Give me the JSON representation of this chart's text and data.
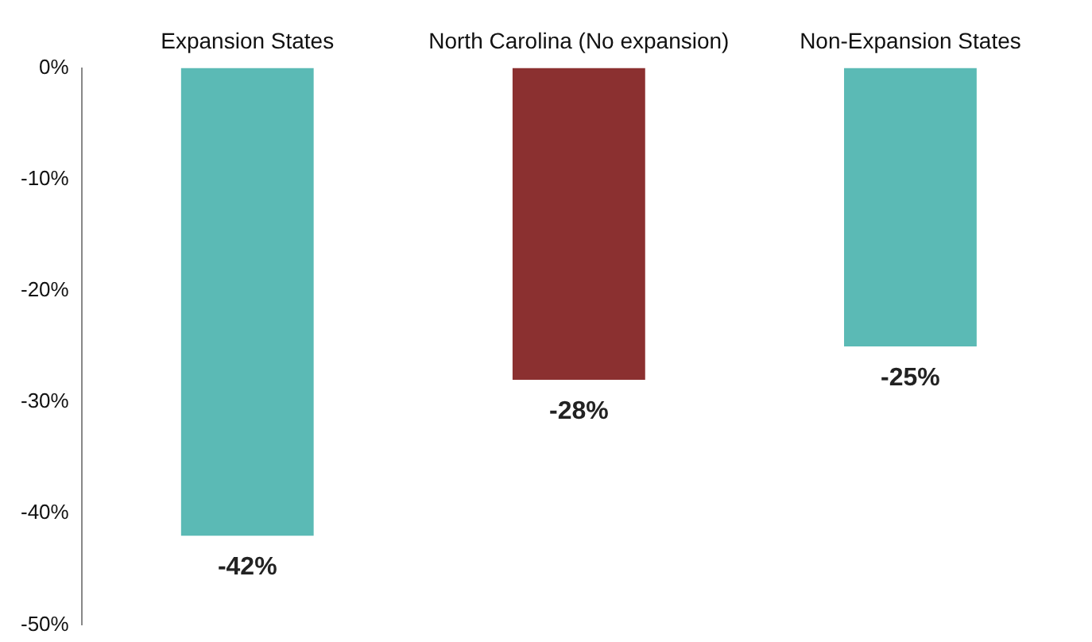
{
  "chart_data": {
    "type": "bar",
    "categories": [
      "Expansion States",
      "North Carolina (No expansion)",
      "Non-Expansion States"
    ],
    "values": [
      -42,
      -28,
      -25
    ],
    "colors": [
      "#5bbab5",
      "#8b3030",
      "#5bbab5"
    ],
    "value_labels": [
      "-42%",
      "-28%",
      "-25%"
    ],
    "ylim": [
      -50,
      0
    ],
    "yticks": [
      {
        "value": 0,
        "label": "0%"
      },
      {
        "value": -10,
        "label": "-10%"
      },
      {
        "value": -20,
        "label": "-20%"
      },
      {
        "value": -30,
        "label": "-30%"
      },
      {
        "value": -40,
        "label": "-40%"
      },
      {
        "value": -50,
        "label": "-50%"
      }
    ],
    "grid": false,
    "legend": false
  }
}
